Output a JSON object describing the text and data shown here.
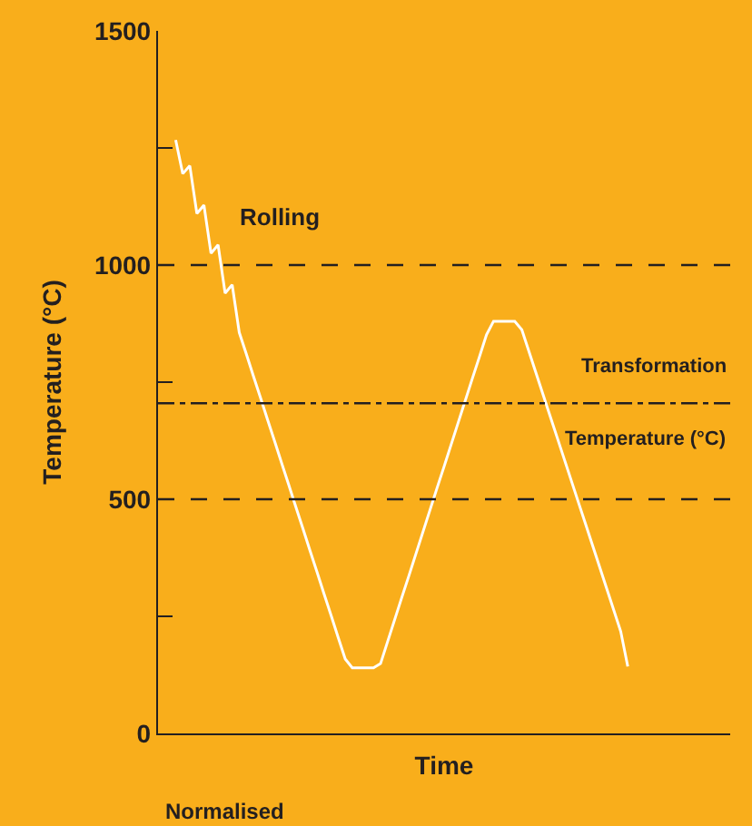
{
  "chart_data": {
    "type": "line",
    "xlabel": "Time",
    "ylabel": "Temperature (°C)",
    "categories": [
      null,
      null,
      null,
      null,
      null,
      null,
      null,
      null,
      null,
      null,
      null,
      null,
      null,
      null,
      null,
      null,
      null,
      null,
      null,
      null,
      null,
      null,
      null,
      null,
      null,
      null,
      null,
      null,
      null,
      null,
      null,
      null,
      null,
      null,
      null,
      null,
      null,
      null,
      null,
      null,
      null,
      null,
      null,
      null,
      null,
      null,
      null,
      null,
      null,
      null,
      null,
      null,
      null,
      null,
      null,
      null,
      null,
      null,
      null,
      null,
      null,
      null,
      null,
      null,
      null,
      null,
      null,
      null,
      null,
      null,
      null,
      null,
      null,
      null,
      null,
      null,
      null,
      null,
      null,
      null,
      null
    ],
    "series": [
      {
        "color": "#ffffff",
        "values": [
          null,
          null,
          1267,
          1195,
          1212,
          1110,
          1128,
          1025,
          1043,
          940,
          958,
          856,
          810,
          763,
          717,
          670,
          624,
          577,
          531,
          484,
          438,
          391,
          345,
          298,
          252,
          205,
          159,
          140,
          140,
          140,
          140,
          149,
          196,
          243,
          290,
          336,
          383,
          430,
          477,
          524,
          570,
          617,
          664,
          711,
          758,
          804,
          851,
          880,
          880,
          880,
          880,
          862,
          816,
          770,
          724,
          678,
          632,
          586,
          540,
          494,
          448,
          402,
          356,
          310,
          264,
          218,
          143,
          null,
          null,
          null,
          null,
          null,
          null,
          null,
          null,
          null,
          null,
          null,
          null,
          null,
          null
        ]
      }
    ],
    "ylim": [
      0,
      1500
    ],
    "yticks": [
      0,
      {
        "value": 250,
        "label": null
      },
      500,
      {
        "value": 750,
        "label": null
      },
      1000,
      {
        "value": 1250,
        "label": null
      },
      1500
    ],
    "tick_labels": "y",
    "grid": false,
    "marker": "none",
    "line_style": "solid",
    "ref_lines": [
      {
        "axis": "y",
        "value": 1000,
        "label": null,
        "line_style": "dashed",
        "color": "#231f20"
      },
      {
        "axis": "y",
        "value": 500,
        "label": null,
        "line_style": "dashed",
        "color": "#231f20"
      },
      {
        "axis": "y",
        "value": 705,
        "label": "Transformation Temperature (°C)",
        "line_style": "dashdot",
        "color": "#231f20"
      }
    ],
    "annotations": [
      "Rolling",
      "Normalised"
    ]
  }
}
